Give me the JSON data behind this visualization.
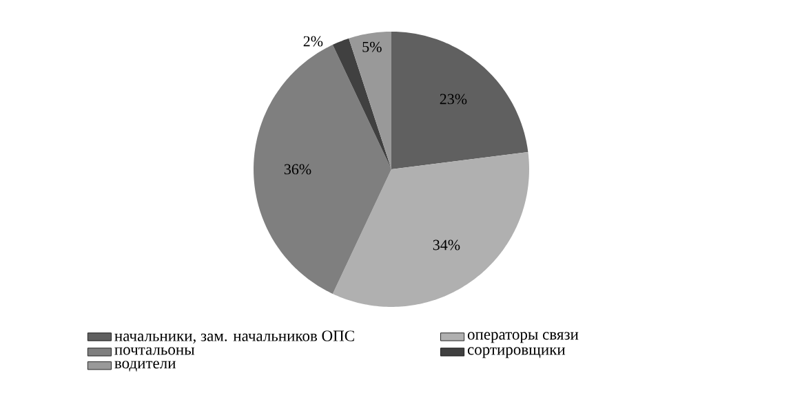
{
  "chart_data": {
    "type": "pie",
    "categories": [
      "начальники, зам. начальников ОПС",
      "операторы связи",
      "почтальоны",
      "сортировщики",
      "водители"
    ],
    "values": [
      23,
      34,
      36,
      2,
      5
    ],
    "value_labels": [
      "23%",
      "34%",
      "36%",
      "2%",
      "5%"
    ],
    "colors": [
      "#606060",
      "#b0b0b0",
      "#7f7f7f",
      "#404040",
      "#999999"
    ],
    "legend": "bottom"
  }
}
